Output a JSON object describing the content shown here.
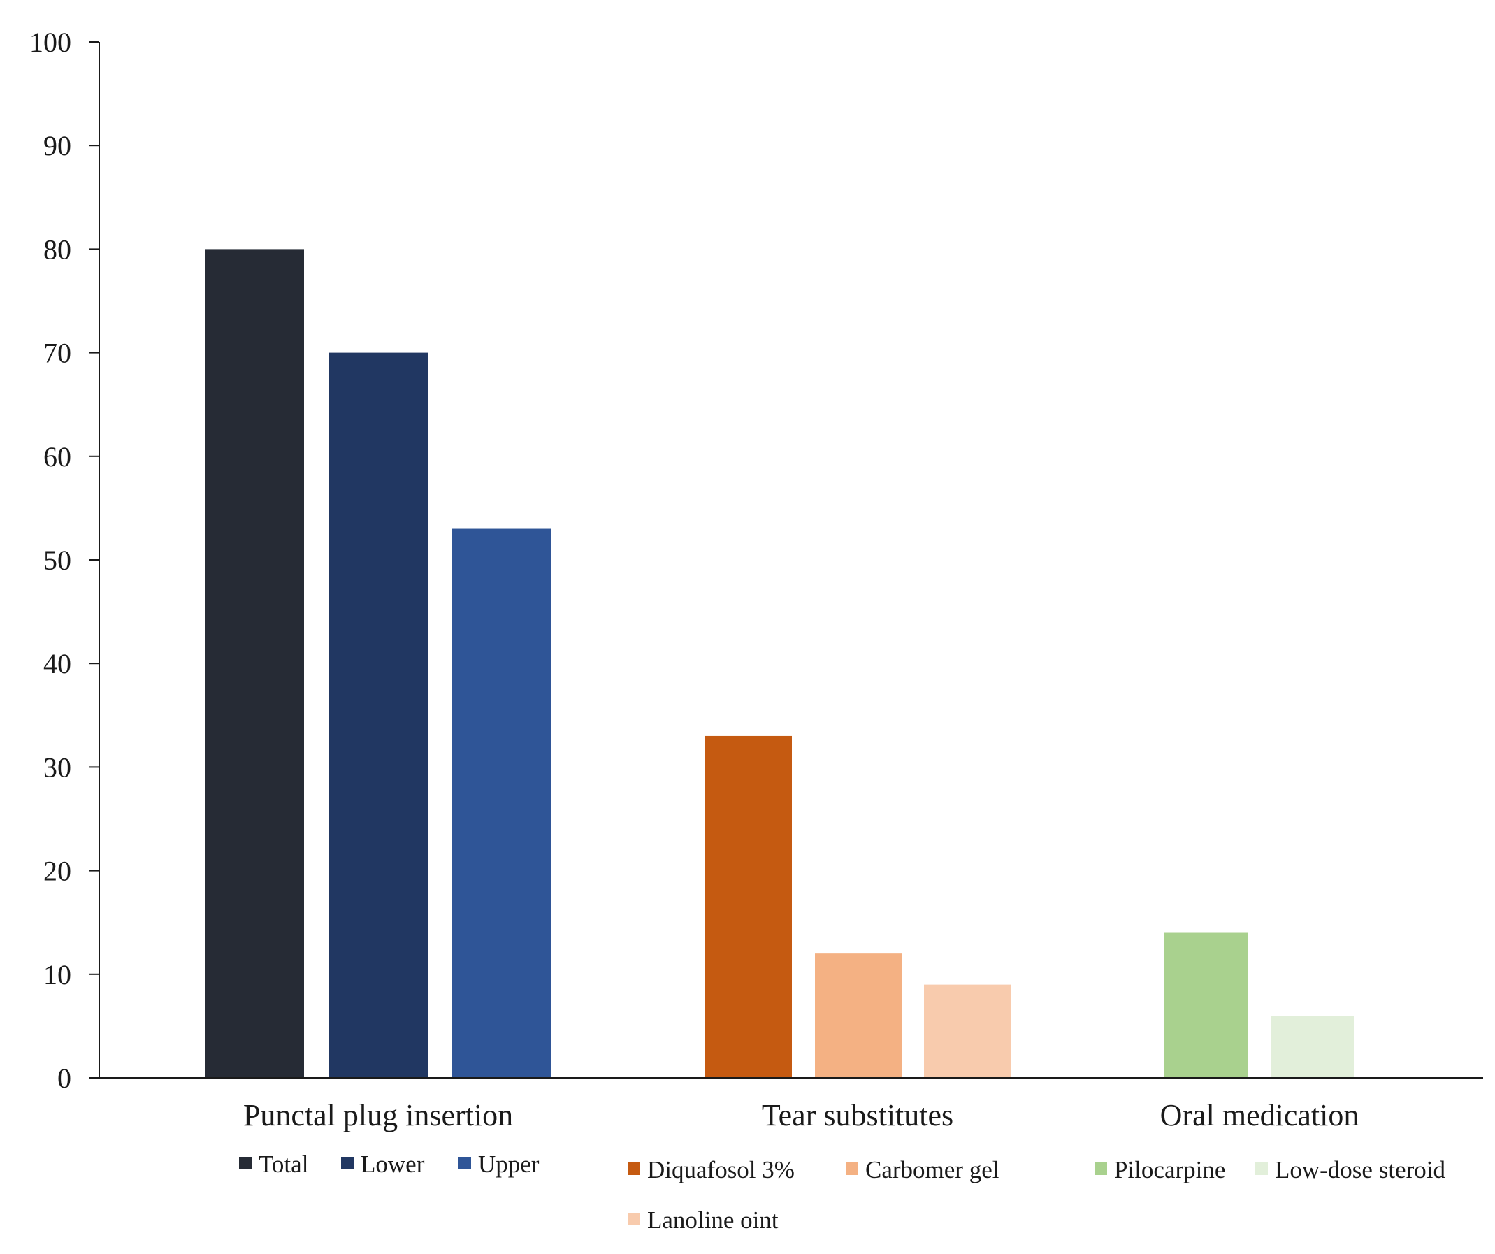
{
  "chart_data": {
    "type": "bar",
    "ylim": [
      0,
      100
    ],
    "yticks": [
      0,
      10,
      20,
      30,
      40,
      50,
      60,
      70,
      80,
      90,
      100
    ],
    "grid": false,
    "groups": [
      {
        "category": "Punctal plug insertion",
        "bars": [
          {
            "name": "Total",
            "value": 80,
            "color": "#262b35"
          },
          {
            "name": "Lower",
            "value": 70,
            "color": "#213762"
          },
          {
            "name": "Upper",
            "value": 53,
            "color": "#2f5597"
          }
        ]
      },
      {
        "category": "Tear substitutes",
        "bars": [
          {
            "name": "Diquafosol 3%",
            "value": 33,
            "color": "#c55a11"
          },
          {
            "name": "Carbomer gel",
            "value": 12,
            "color": "#f4b183"
          },
          {
            "name": "Lanoline oint",
            "value": 9,
            "color": "#f8cbad"
          }
        ]
      },
      {
        "category": "Oral medication",
        "bars": [
          {
            "name": "Pilocarpine",
            "value": 14,
            "color": "#a9d18e"
          },
          {
            "name": "Low-dose steroid",
            "value": 6,
            "color": "#e2efda"
          }
        ]
      }
    ]
  }
}
